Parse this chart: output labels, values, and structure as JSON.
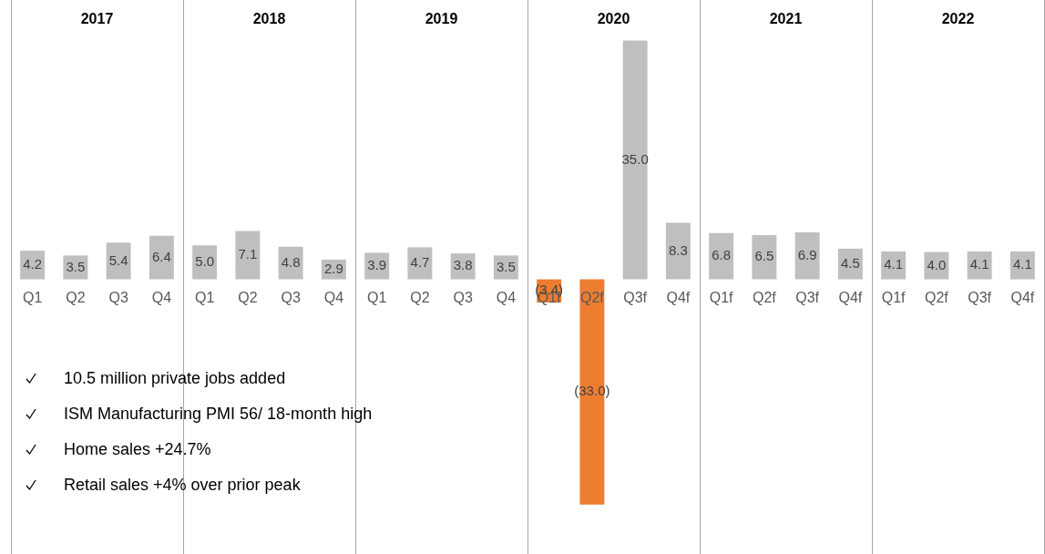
{
  "chart_data": {
    "type": "bar",
    "categories": [
      "Q1",
      "Q2",
      "Q3",
      "Q4",
      "Q1",
      "Q2",
      "Q3",
      "Q4",
      "Q1",
      "Q2",
      "Q3",
      "Q4",
      "Q1f",
      "Q2f",
      "Q3f",
      "Q4f",
      "Q1f",
      "Q2f",
      "Q3f",
      "Q4f",
      "Q1f",
      "Q2f",
      "Q3f",
      "Q4f"
    ],
    "values": [
      4.2,
      3.5,
      5.4,
      6.4,
      5.0,
      7.1,
      4.8,
      2.9,
      3.9,
      4.7,
      3.8,
      3.5,
      -3.4,
      -33.0,
      35.0,
      8.3,
      6.8,
      6.5,
      6.9,
      4.5,
      4.1,
      4.0,
      4.1,
      4.1
    ],
    "colors": [
      "#bfbfbf",
      "#bfbfbf",
      "#bfbfbf",
      "#bfbfbf",
      "#bfbfbf",
      "#bfbfbf",
      "#bfbfbf",
      "#bfbfbf",
      "#bfbfbf",
      "#bfbfbf",
      "#bfbfbf",
      "#bfbfbf",
      "#ed7d31",
      "#ed7d31",
      "#bfbfbf",
      "#bfbfbf",
      "#bfbfbf",
      "#bfbfbf",
      "#bfbfbf",
      "#bfbfbf",
      "#bfbfbf",
      "#bfbfbf",
      "#bfbfbf",
      "#bfbfbf"
    ],
    "value_labels": [
      "4.2",
      "3.5",
      "5.4",
      "6.4",
      "5.0",
      "7.1",
      "4.8",
      "2.9",
      "3.9",
      "4.7",
      "3.8",
      "3.5",
      "(3.4)",
      "(33.0)",
      "35.0",
      "8.3",
      "6.8",
      "6.5",
      "6.9",
      "4.5",
      "4.1",
      "4.0",
      "4.1",
      "4.1"
    ],
    "annotations": [
      "2017",
      "2018",
      "2019",
      "2020",
      "2021",
      "2022",
      "10.5 million private jobs added",
      "ISM Manufacturing PMI 56/ 18-month high",
      "Home sales +24.7%",
      "Retail sales +4% over prior peak"
    ],
    "legend": false
  }
}
